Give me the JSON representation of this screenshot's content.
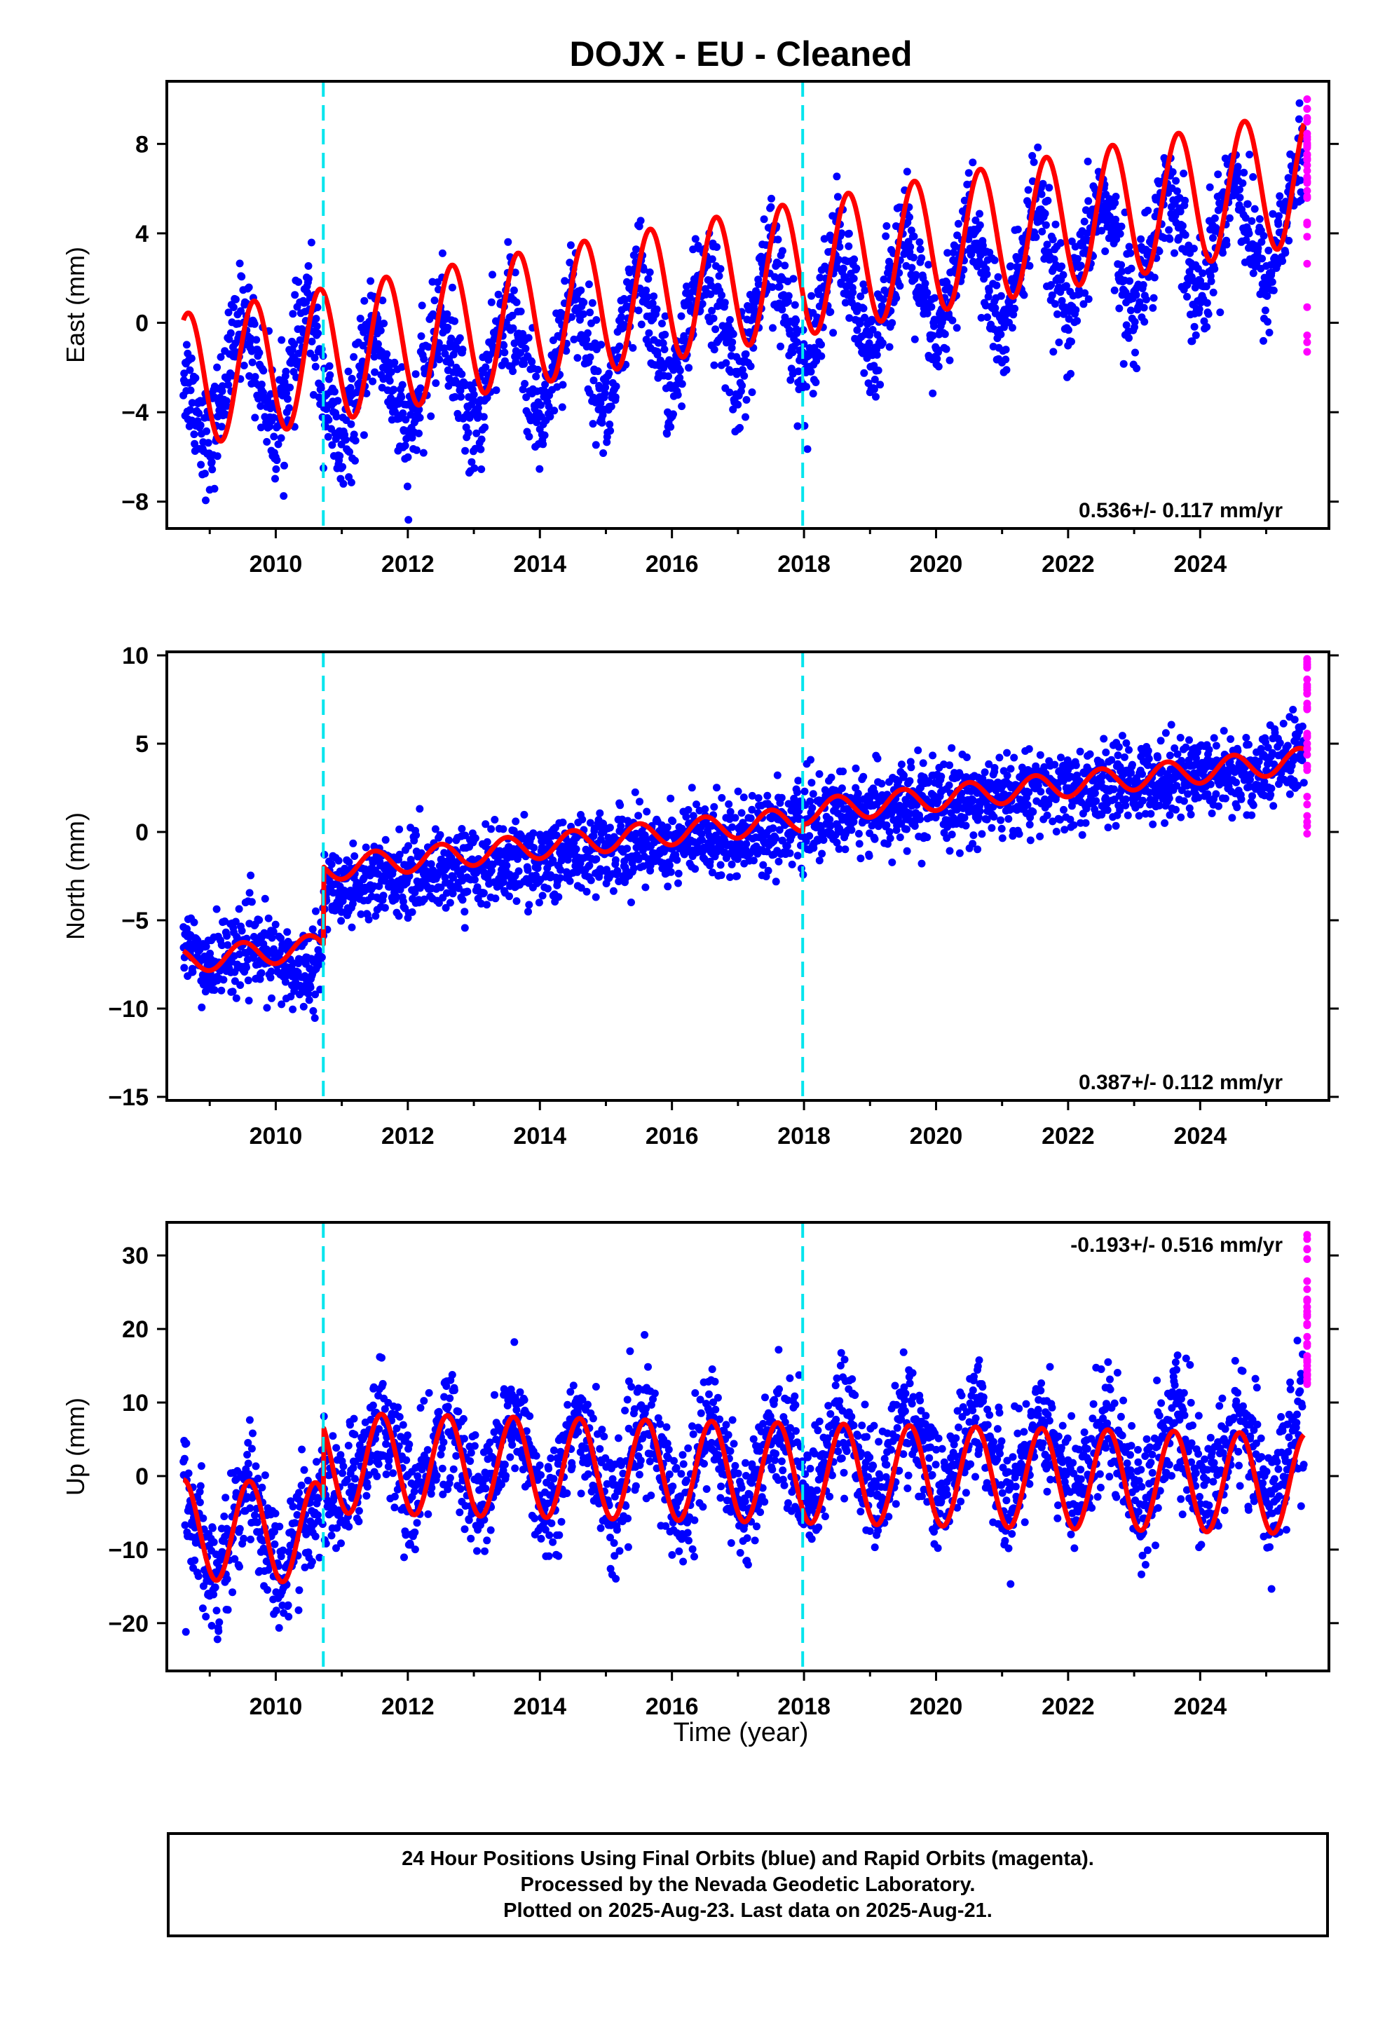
{
  "colors": {
    "final_orbits": "#0000ff",
    "rapid_orbits": "#ff00ff",
    "model": "#ff0000",
    "offset_line": "#00e5ee",
    "axis": "#000000"
  },
  "chart_data": {
    "type": "scatter",
    "title": "DOJX  - EU - Cleaned",
    "xlabel": "Time (year)",
    "xlim": [
      2008.35,
      2025.95
    ],
    "x_ticks": [
      2010,
      2012,
      2014,
      2016,
      2018,
      2020,
      2022,
      2024
    ],
    "offset_lines_x": [
      2010.72,
      2017.98
    ],
    "final_orbits_last_x": 2025.57,
    "rapid_orbits_x": 2025.62,
    "panels": [
      {
        "name": "east",
        "ylabel": "East (mm)",
        "ylim": [
          -9.2,
          10.8
        ],
        "y_ticks": [
          -8,
          -4,
          0,
          4,
          8
        ],
        "velocity_label": "0.536+/- 0.117 mm/yr",
        "velocity_position": "bottom-right",
        "series": [
          {
            "name": "Final Orbits (blue)",
            "x": [
              2008.6,
              2009.0,
              2009.5,
              2010.0,
              2010.5,
              2010.72,
              2011.0,
              2011.5,
              2012.0,
              2012.5,
              2013.0,
              2013.5,
              2014.0,
              2014.5,
              2015.0,
              2015.5,
              2016.0,
              2016.5,
              2017.0,
              2017.5,
              2018.0,
              2018.5,
              2019.0,
              2019.5,
              2020.0,
              2020.5,
              2021.0,
              2021.5,
              2022.0,
              2022.5,
              2023.0,
              2023.5,
              2024.0,
              2024.5,
              2025.0,
              2025.5
            ],
            "y": [
              -2.0,
              -5.6,
              0.6,
              -5.0,
              1.0,
              -3.0,
              -6.0,
              0.0,
              -5.5,
              0.5,
              -5.0,
              1.0,
              -4.5,
              1.6,
              -4.0,
              2.2,
              -3.4,
              2.8,
              -2.8,
              3.2,
              -2.3,
              3.8,
              -1.8,
              4.2,
              -1.3,
              4.8,
              -0.8,
              5.4,
              -0.2,
              5.9,
              0.4,
              6.4,
              0.9,
              6.9,
              1.5,
              7.3
            ],
            "scatter_sigma": 1.2
          },
          {
            "name": "Rapid Orbits (magenta)",
            "x": [
              2025.62,
              2025.62,
              2025.62,
              2025.62,
              2025.62,
              2025.62,
              2025.62,
              2025.62
            ],
            "y": [
              10.0,
              8.2,
              7.5,
              6.8,
              5.9,
              4.4,
              0.7,
              -1.3
            ]
          }
        ],
        "model": {
          "trend_start": -2.6,
          "trend_rate": 0.536,
          "amplitude": 3.0,
          "phase": 0.42,
          "steps": []
        }
      },
      {
        "name": "north",
        "ylabel": "North (mm)",
        "ylim": [
          -15.2,
          10.2
        ],
        "y_ticks": [
          -15,
          -10,
          -5,
          0,
          5,
          10
        ],
        "velocity_label": "0.387+/- 0.112 mm/yr",
        "velocity_position": "bottom-right",
        "series": [
          {
            "name": "Final Orbits (blue)",
            "x": [
              2008.6,
              2009.0,
              2009.5,
              2010.0,
              2010.3,
              2010.7,
              2010.72,
              2011.0,
              2012.0,
              2013.0,
              2014.0,
              2015.0,
              2016.0,
              2017.0,
              2018.0,
              2019.0,
              2020.0,
              2021.0,
              2022.0,
              2023.0,
              2024.0,
              2025.0,
              2025.5
            ],
            "y": [
              -6.5,
              -7.6,
              -6.5,
              -7.2,
              -8.0,
              -7.0,
              -3.5,
              -3.0,
              -2.4,
              -2.0,
              -1.6,
              -1.0,
              -0.6,
              -0.2,
              0.5,
              1.3,
              1.6,
              2.0,
              2.4,
              2.8,
              3.4,
              3.3,
              4.5
            ],
            "scatter_sigma": 1.1
          },
          {
            "name": "Rapid Orbits (magenta)",
            "x": [
              2025.62,
              2025.62,
              2025.62,
              2025.62,
              2025.62,
              2025.62,
              2025.62
            ],
            "y": [
              9.8,
              9.3,
              7.0,
              5.0,
              3.5,
              2.0,
              -0.1
            ]
          }
        ],
        "model": {
          "trend_start": -2.9,
          "trend_rate": 0.387,
          "amplitude": 0.7,
          "phase": 0.25,
          "steps": [
            {
              "x": 2008.35,
              "to": 2010.72,
              "offset": -4.4
            },
            {
              "x": 2017.98,
              "to": 2030.0,
              "offset": 0.4
            }
          ]
        }
      },
      {
        "name": "up",
        "ylabel": "Up (mm)",
        "ylim": [
          -26.5,
          34.5
        ],
        "y_ticks": [
          -20,
          -10,
          0,
          10,
          20,
          30
        ],
        "velocity_label": "-0.193+/- 0.516 mm/yr",
        "velocity_position": "top-right",
        "series": [
          {
            "name": "Final Orbits (blue)",
            "x": [
              2008.6,
              2009.1,
              2009.6,
              2010.1,
              2010.72,
              2011.0,
              2011.6,
              2012.1,
              2012.6,
              2013.1,
              2013.6,
              2014.1,
              2014.6,
              2015.1,
              2015.6,
              2016.1,
              2016.6,
              2017.1,
              2017.6,
              2018.1,
              2018.6,
              2019.1,
              2019.6,
              2020.1,
              2020.6,
              2021.1,
              2021.6,
              2022.1,
              2022.6,
              2023.1,
              2023.6,
              2024.1,
              2024.6,
              2025.1,
              2025.5
            ],
            "y": [
              -1.0,
              -14.0,
              -1.0,
              -14.0,
              -1.0,
              -4.0,
              8.5,
              -4.5,
              8.5,
              -5.0,
              8.5,
              -5.0,
              8.0,
              -5.5,
              8.0,
              -5.5,
              8.0,
              -5.5,
              8.0,
              -3.5,
              9.5,
              -3.5,
              9.5,
              -3.5,
              9.5,
              -4.0,
              9.0,
              -4.0,
              9.0,
              -4.5,
              9.0,
              -4.5,
              8.5,
              -4.5,
              8.0
            ],
            "scatter_sigma": 4.0
          },
          {
            "name": "Rapid Orbits (magenta)",
            "x": [
              2025.62,
              2025.62,
              2025.62,
              2025.62,
              2025.62,
              2025.62,
              2025.62,
              2025.62
            ],
            "y": [
              32.8,
              29.5,
              26.5,
              23.0,
              20.5,
              18.0,
              15.0,
              12.5
            ]
          }
        ],
        "model": {
          "trend_start": 2.2,
          "trend_rate": -0.193,
          "amplitude": 6.8,
          "phase": 0.35,
          "steps": [
            {
              "x": 2008.35,
              "to": 2010.72,
              "offset": -9.5
            }
          ]
        }
      }
    ]
  },
  "footer": {
    "line1": "24 Hour Positions Using Final Orbits (blue) and Rapid Orbits (magenta).",
    "line2": "Processed by the Nevada Geodetic Laboratory.",
    "line3": "Plotted on 2025-Aug-23. Last data on 2025-Aug-21."
  }
}
